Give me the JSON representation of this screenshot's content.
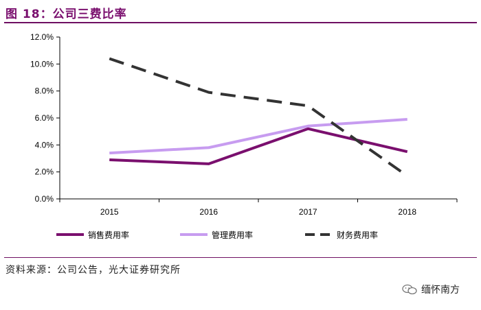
{
  "header": {
    "title": "图 18：公司三费比率"
  },
  "footer": {
    "source": "资料来源：公司公告，光大证券研究所",
    "watermark": "缅怀南方"
  },
  "chart_data": {
    "type": "line",
    "x": [
      "2015",
      "2016",
      "2017",
      "2018"
    ],
    "ylim": [
      0,
      12
    ],
    "ytick_labels": [
      "0.0%",
      "2.0%",
      "4.0%",
      "6.0%",
      "8.0%",
      "10.0%",
      "12.0%"
    ],
    "yticks": [
      0,
      2,
      4,
      6,
      8,
      10,
      12
    ],
    "grid": false,
    "legend_position": "bottom",
    "series": [
      {
        "name": "销售费用率",
        "values": [
          2.9,
          2.6,
          5.2,
          3.5
        ],
        "color": "#7a0f6e",
        "style": "solid"
      },
      {
        "name": "管理费用率",
        "values": [
          3.4,
          3.8,
          5.4,
          5.9
        ],
        "color": "#c79cf0",
        "style": "solid"
      },
      {
        "name": "财务费用率",
        "values": [
          10.4,
          7.9,
          6.9,
          1.7
        ],
        "color": "#333333",
        "style": "dashed"
      }
    ]
  }
}
